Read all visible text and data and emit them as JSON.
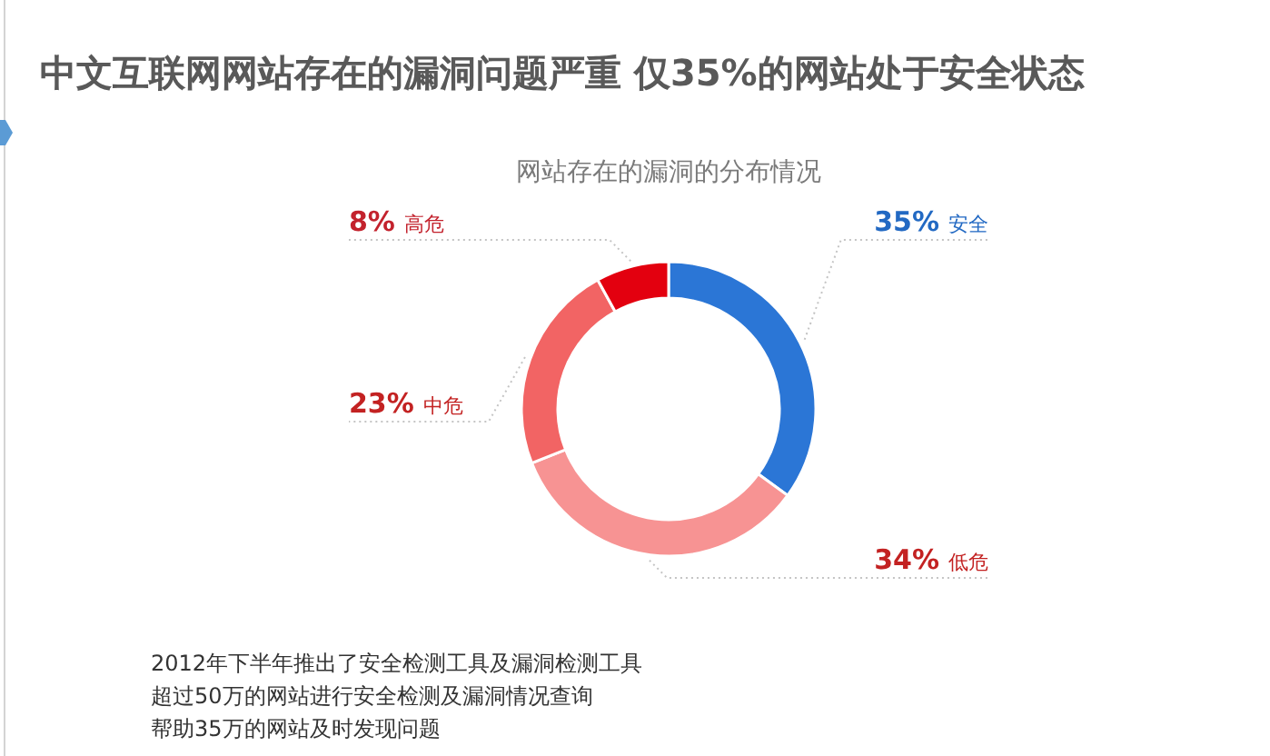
{
  "chart_data": {
    "type": "donut",
    "title": "中文互联网网站存在的漏洞问题严重 仅35%的网站处于安全状态",
    "subtitle": "网站存在的漏洞的分布情况",
    "categories": [
      "安全",
      "低危",
      "中危",
      "高危"
    ],
    "values": [
      35,
      34,
      23,
      8
    ],
    "colors": [
      "#2b76d6",
      "#f79393",
      "#f26464",
      "#e3000f"
    ],
    "value_labels": [
      "35%",
      "34%",
      "23%",
      "8%"
    ],
    "annotations": [
      "2012年下半年推出了安全检测工具及漏洞检测工具",
      "超过50万的网站进行安全检测及漏洞情况查询",
      "帮助35万的网站及时发现问题"
    ]
  }
}
